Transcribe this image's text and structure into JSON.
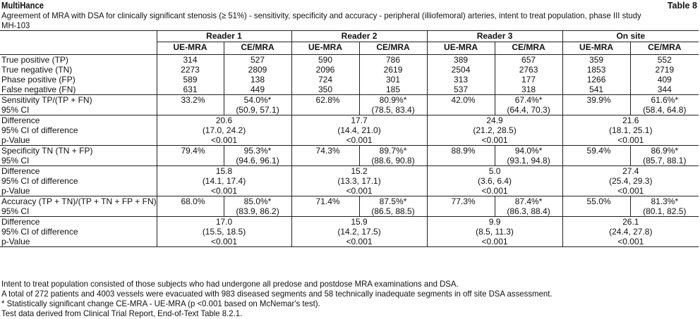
{
  "header": {
    "brand": "MultiHance",
    "table_number": "Table 8",
    "caption_line1": "Agreement of MRA with DSA for clinically significant stenosis (≥ 51%) - sensitivity, specificity and accuracy - peripheral (illiofemoral) arteries, intent to treat population, phase III study",
    "caption_line2": "MH-103"
  },
  "columns": {
    "groups": [
      "Reader 1",
      "Reader 2",
      "Reader 3",
      "On site"
    ],
    "subs": [
      "UE-MRA",
      "CE/MRA"
    ]
  },
  "counts": {
    "labels": [
      "True positive (TP)",
      "True negative (TN)",
      "Phase positive (FP)",
      "False negative (FN)"
    ],
    "rows": [
      [
        "314",
        "527",
        "590",
        "786",
        "389",
        "657",
        "359",
        "552"
      ],
      [
        "2273",
        "2809",
        "2096",
        "2619",
        "2504",
        "2763",
        "1853",
        "2719"
      ],
      [
        "589",
        "138",
        "724",
        "301",
        "313",
        "177",
        "1266",
        "409"
      ],
      [
        "631",
        "449",
        "350",
        "185",
        "537",
        "318",
        "541",
        "344"
      ]
    ]
  },
  "sections": [
    {
      "metric_label": "Sensitivity TP/(TP + FN)",
      "ci_label": "95% CI",
      "ue": [
        "33.2%",
        "62.8%",
        "42.0%",
        "39.9%"
      ],
      "ce": [
        "54.0%*",
        "80.9%*",
        "67.4%*",
        "61.6%*"
      ],
      "ce_ci": [
        "(50.9, 57.1)",
        "(78.5, 83.4)",
        "(64.4, 70.3)",
        "(58.4, 64.8)"
      ],
      "diff_labels": [
        "Difference",
        "95% CI of difference",
        "p-Value"
      ],
      "diff": [
        "20.6",
        "17.7",
        "24.9",
        "21.6"
      ],
      "diff_ci": [
        "(17.0, 24.2)",
        "(14.4, 21.0)",
        "(21.2, 28.5)",
        "(18.1, 25.1)"
      ],
      "p": [
        "<0.001",
        "<0.001",
        "<0.001",
        "<0.001"
      ]
    },
    {
      "metric_label": "Specificity TN (TN + FP)",
      "ci_label": "95% CI",
      "ue": [
        "79.4%",
        "74.3%",
        "88.9%",
        "59.4%"
      ],
      "ce": [
        "95.3%*",
        "89.7%*",
        "94.0%*",
        "86.9%*"
      ],
      "ce_ci": [
        "(94.6, 96.1)",
        "(88.6, 90.8)",
        "(93.1, 94.8)",
        "(85.7, 88.1)"
      ],
      "diff_labels": [
        "Difference",
        "95% CI of difference",
        "p-Value"
      ],
      "diff": [
        "15.8",
        "15.2",
        "5.0",
        "27.4"
      ],
      "diff_ci": [
        "(14.1, 17.4)",
        "(13.3, 17.1)",
        "(3.6, 6.4)",
        "(25.4, 29.3)"
      ],
      "p": [
        "<0.001",
        "<0.001",
        "<0.001",
        "<0.001"
      ]
    },
    {
      "metric_label": "Accuracy (TP + TN)/(TP + TN + FP + FN)",
      "ci_label": "95% CI",
      "ue": [
        "68.0%",
        "71.4%",
        "77.3%",
        "55.0%"
      ],
      "ce": [
        "85.0%*",
        "87.5%*",
        "87.4%*",
        "81.3%*"
      ],
      "ce_ci": [
        "(83.9, 86.2)",
        "(86.5, 88.5)",
        "(86.3, 88.4)",
        "(80.1, 82.5)"
      ],
      "diff_labels": [
        "Difference",
        "95% CI of difference",
        "p-Value"
      ],
      "diff": [
        "17.0",
        "15.9",
        "9.9",
        "26.1"
      ],
      "diff_ci": [
        "(15.5, 18.5)",
        "(14.2, 17.5)",
        "(8.5, 11.3)",
        "(24.4, 27.8)"
      ],
      "p": [
        "<0.001",
        "<0.001",
        "<0.001",
        "<0.001"
      ]
    }
  ],
  "footnotes": [
    "Intent to treat population consisted of those subjects who had undergone all predose and postdose MRA examinations and DSA.",
    "A total of 272 patients and 4003 vessels were evacuated with 983 diseased segments and 58 technically inadequate segments in off site DSA assessment.",
    "* Statistically significant change CE-MRA - UE-MRA (p <0.001 based on McNemar's test).",
    "Test data derived from Clinical Trial Report, End-of-Text Table 8.2.1."
  ]
}
